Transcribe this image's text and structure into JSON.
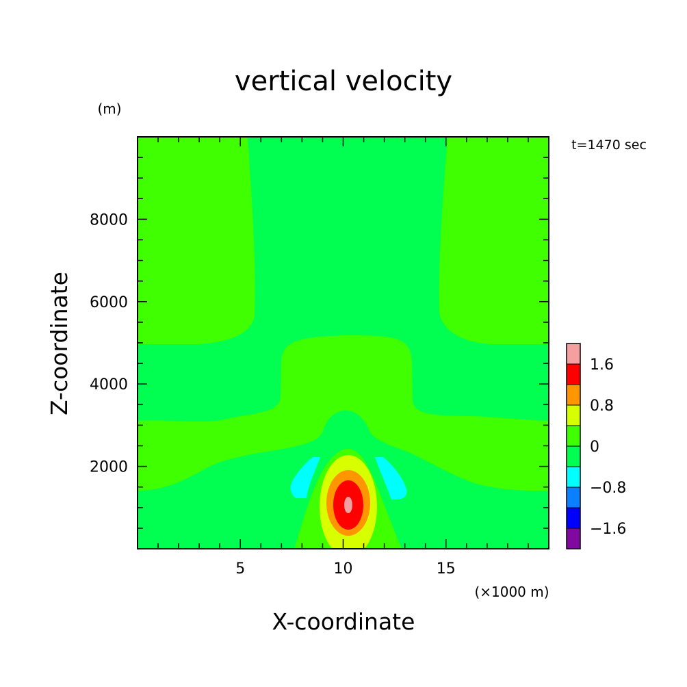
{
  "chart_data": {
    "type": "heatmap",
    "title": "vertical velocity",
    "xlabel": "X-coordinate",
    "ylabel": "Z-coordinate",
    "x_unit": "(×1000 m)",
    "y_unit": "(m)",
    "time_label": "t=1470 sec",
    "xlim": [
      0,
      20
    ],
    "ylim": [
      0,
      10000
    ],
    "x_ticks": [
      5,
      10,
      15
    ],
    "y_ticks": [
      2000,
      4000,
      6000,
      8000
    ],
    "colorbar": {
      "levels": [
        {
          "min": -2.0,
          "max": -1.6,
          "color": "#800aa0"
        },
        {
          "min": -1.6,
          "max": -1.2,
          "color": "#0000ff"
        },
        {
          "min": -1.2,
          "max": -0.8,
          "color": "#0a80ff"
        },
        {
          "min": -0.8,
          "max": -0.4,
          "color": "#00ffff"
        },
        {
          "min": -0.4,
          "max": 0.0,
          "color": "#00ff50"
        },
        {
          "min": 0.0,
          "max": 0.4,
          "color": "#40ff00"
        },
        {
          "min": 0.4,
          "max": 0.8,
          "color": "#d8ff00"
        },
        {
          "min": 0.8,
          "max": 1.2,
          "color": "#ff9600"
        },
        {
          "min": 1.2,
          "max": 1.6,
          "color": "#ff0000"
        },
        {
          "min": 1.6,
          "max": 2.0,
          "color": "#f5a0a0"
        }
      ],
      "tick_labels": [
        "1.6",
        "0.8",
        "0",
        "−0.8",
        "−1.6"
      ]
    },
    "features": [
      {
        "name": "updraft core",
        "center": [
          10.2,
          1100
        ],
        "peak": 2.0
      },
      {
        "name": "downdraft left",
        "center": [
          8.3,
          1800
        ],
        "min": -0.8
      },
      {
        "name": "downdraft right",
        "center": [
          12.7,
          1800
        ],
        "min": -0.8
      }
    ]
  }
}
